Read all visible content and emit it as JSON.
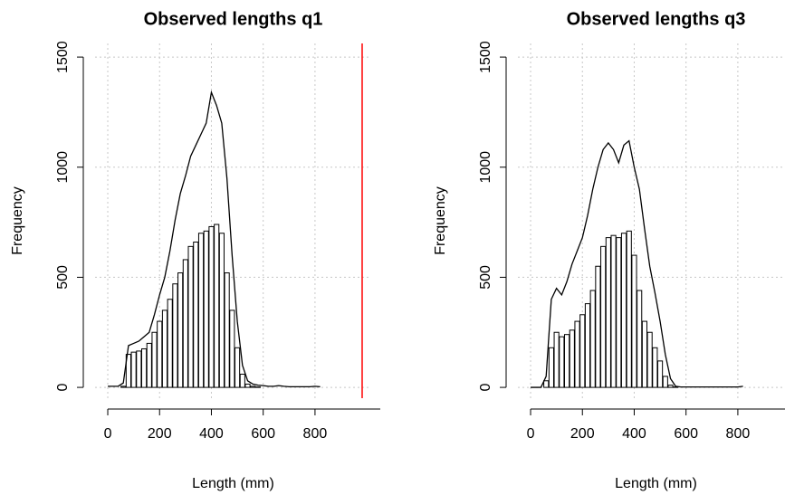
{
  "chart_data": [
    {
      "type": "histogram",
      "title": "Observed lengths q1",
      "x_label": "Length (mm)",
      "y_label": "Frequency",
      "x": [
        0,
        20,
        40,
        60,
        80,
        100,
        120,
        140,
        160,
        180,
        200,
        220,
        240,
        260,
        280,
        300,
        320,
        340,
        360,
        380,
        400,
        420,
        440,
        460,
        480,
        500,
        520,
        540,
        560,
        580,
        600,
        620,
        640,
        660,
        680,
        700,
        720,
        740,
        760,
        780,
        800,
        820
      ],
      "series": [
        {
          "color": "#000000",
          "style": "bars",
          "values": [
            0,
            0,
            0,
            5,
            150,
            160,
            165,
            175,
            200,
            250,
            300,
            350,
            400,
            470,
            520,
            580,
            640,
            660,
            700,
            710,
            730,
            740,
            700,
            520,
            350,
            180,
            60,
            15,
            5,
            2,
            0,
            0,
            0,
            0,
            0,
            0,
            0,
            0,
            0,
            0,
            0,
            0
          ]
        },
        {
          "color": "#000000",
          "style": "line",
          "values": [
            5,
            5,
            5,
            20,
            190,
            200,
            210,
            230,
            250,
            330,
            420,
            500,
            620,
            760,
            880,
            960,
            1050,
            1100,
            1150,
            1200,
            1340,
            1280,
            1200,
            950,
            600,
            300,
            100,
            30,
            15,
            10,
            8,
            5,
            5,
            8,
            5,
            3,
            3,
            3,
            3,
            3,
            5,
            3
          ]
        }
      ],
      "vline": {
        "value": 982,
        "color": "#ff0000"
      },
      "xlim": [
        -49,
        1017
      ],
      "ylim": [
        -49,
        1562
      ],
      "xticks": [
        0,
        200,
        400,
        600,
        800
      ],
      "yticks": [
        0,
        500,
        1000,
        1500
      ],
      "grid": true
    },
    {
      "type": "histogram",
      "title": "Observed lengths q3",
      "x_label": "Length (mm)",
      "y_label": "Frequency",
      "x": [
        0,
        20,
        40,
        60,
        80,
        100,
        120,
        140,
        160,
        180,
        200,
        220,
        240,
        260,
        280,
        300,
        320,
        340,
        360,
        380,
        400,
        420,
        440,
        460,
        480,
        500,
        520,
        540,
        560,
        580,
        600,
        620,
        640,
        660,
        680,
        700,
        720,
        740,
        760,
        780,
        800,
        820
      ],
      "series": [
        {
          "color": "#000000",
          "style": "bars",
          "values": [
            0,
            0,
            0,
            30,
            180,
            250,
            230,
            240,
            260,
            300,
            330,
            380,
            440,
            550,
            640,
            680,
            690,
            680,
            700,
            710,
            600,
            440,
            300,
            250,
            180,
            120,
            50,
            10,
            2,
            0,
            0,
            0,
            0,
            0,
            0,
            0,
            0,
            0,
            0,
            0,
            0,
            0
          ]
        },
        {
          "color": "#000000",
          "style": "line",
          "values": [
            0,
            0,
            0,
            50,
            400,
            450,
            420,
            480,
            560,
            620,
            680,
            780,
            900,
            1000,
            1080,
            1110,
            1080,
            1020,
            1100,
            1120,
            1000,
            900,
            720,
            550,
            430,
            300,
            150,
            40,
            5,
            2,
            2,
            2,
            2,
            2,
            2,
            2,
            2,
            2,
            2,
            2,
            2,
            5
          ]
        }
      ],
      "xlim": [
        -49,
        1017
      ],
      "ylim": [
        -49,
        1562
      ],
      "xticks": [
        0,
        200,
        400,
        600,
        800
      ],
      "yticks": [
        0,
        500,
        1000,
        1500
      ],
      "grid": true
    }
  ]
}
